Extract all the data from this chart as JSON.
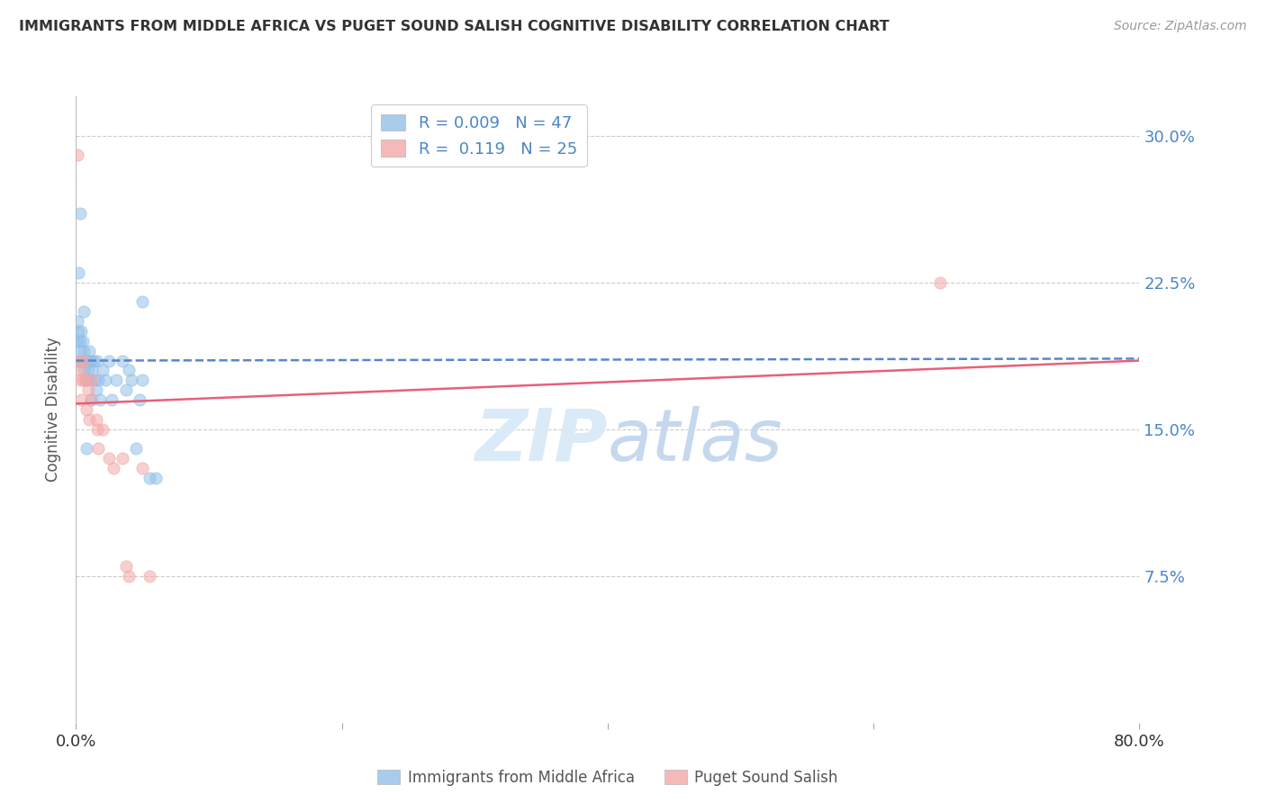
{
  "title": "IMMIGRANTS FROM MIDDLE AFRICA VS PUGET SOUND SALISH COGNITIVE DISABILITY CORRELATION CHART",
  "source": "Source: ZipAtlas.com",
  "ylabel": "Cognitive Disability",
  "xlim": [
    0.0,
    0.8
  ],
  "ylim": [
    0.0,
    0.32
  ],
  "yticks": [
    0.0,
    0.075,
    0.15,
    0.225,
    0.3
  ],
  "ytick_labels": [
    "",
    "7.5%",
    "15.0%",
    "22.5%",
    "30.0%"
  ],
  "xticks": [
    0.0,
    0.2,
    0.4,
    0.6,
    0.8
  ],
  "xtick_labels": [
    "0.0%",
    "",
    "",
    "",
    "80.0%"
  ],
  "grid_color": "#cccccc",
  "background_color": "#ffffff",
  "blue_color": "#92c0e8",
  "pink_color": "#f4a8a8",
  "line_blue": "#5588cc",
  "line_pink": "#e8607a",
  "watermark_color": "#daeaf7",
  "blue_scatter_x": [
    0.001,
    0.001,
    0.002,
    0.002,
    0.003,
    0.003,
    0.004,
    0.004,
    0.005,
    0.005,
    0.006,
    0.006,
    0.007,
    0.007,
    0.008,
    0.008,
    0.009,
    0.01,
    0.01,
    0.011,
    0.011,
    0.012,
    0.013,
    0.014,
    0.015,
    0.016,
    0.017,
    0.018,
    0.02,
    0.022,
    0.025,
    0.027,
    0.03,
    0.035,
    0.038,
    0.04,
    0.042,
    0.045,
    0.048,
    0.05,
    0.002,
    0.003,
    0.006,
    0.008,
    0.05,
    0.055,
    0.06
  ],
  "blue_scatter_y": [
    0.195,
    0.205,
    0.2,
    0.185,
    0.195,
    0.19,
    0.185,
    0.2,
    0.195,
    0.185,
    0.19,
    0.18,
    0.185,
    0.175,
    0.175,
    0.185,
    0.18,
    0.19,
    0.175,
    0.185,
    0.165,
    0.18,
    0.185,
    0.175,
    0.17,
    0.185,
    0.175,
    0.165,
    0.18,
    0.175,
    0.185,
    0.165,
    0.175,
    0.185,
    0.17,
    0.18,
    0.175,
    0.14,
    0.165,
    0.175,
    0.23,
    0.26,
    0.21,
    0.14,
    0.215,
    0.125,
    0.125
  ],
  "pink_scatter_x": [
    0.001,
    0.002,
    0.003,
    0.003,
    0.004,
    0.005,
    0.006,
    0.007,
    0.008,
    0.009,
    0.01,
    0.011,
    0.012,
    0.015,
    0.016,
    0.017,
    0.025,
    0.028,
    0.035,
    0.038,
    0.04,
    0.05,
    0.055,
    0.02,
    0.65
  ],
  "pink_scatter_y": [
    0.29,
    0.185,
    0.18,
    0.175,
    0.165,
    0.175,
    0.185,
    0.175,
    0.16,
    0.17,
    0.155,
    0.165,
    0.175,
    0.155,
    0.15,
    0.14,
    0.135,
    0.13,
    0.135,
    0.08,
    0.075,
    0.13,
    0.075,
    0.15,
    0.225
  ],
  "blue_line_x": [
    0.0,
    0.8
  ],
  "blue_line_y": [
    0.185,
    0.186
  ],
  "pink_line_x": [
    0.0,
    0.8
  ],
  "pink_line_y": [
    0.163,
    0.185
  ],
  "marker_size": 90
}
